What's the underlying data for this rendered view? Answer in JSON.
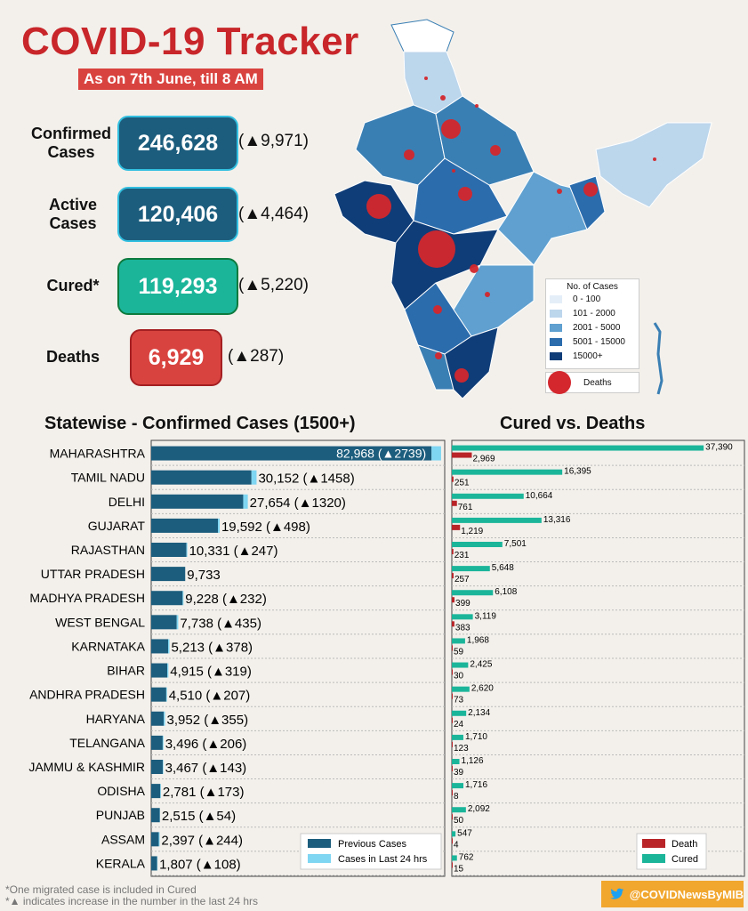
{
  "header": {
    "title": "COVID-19 Tracker",
    "date": "As on 7th June, till 8 AM"
  },
  "stats": {
    "confirmed": {
      "label_line1": "Confirmed",
      "label_line2": "Cases",
      "value": "246,628",
      "delta": "(▲9,971)"
    },
    "active": {
      "label_line1": "Active",
      "label_line2": "Cases",
      "value": "120,406",
      "delta": "(▲4,464)"
    },
    "cured": {
      "label": "Cured*",
      "value": "119,293",
      "delta": "(▲5,220)"
    },
    "deaths": {
      "label": "Deaths",
      "value": "6,929",
      "delta": "(▲287)"
    }
  },
  "map_legend": {
    "title": "No. of Cases",
    "items": [
      "0 - 100",
      "101 - 2000",
      "2001 - 5000",
      "5001 - 15000",
      "15000+"
    ],
    "deaths_label": "Deaths"
  },
  "colors": {
    "previous": "#1c5d7d",
    "last24": "#7fd6f2",
    "cured": "#1bb59a",
    "death": "#b82428",
    "title_red": "#c8262a"
  },
  "chart_data": [
    {
      "type": "bar",
      "orientation": "horizontal",
      "stacked": true,
      "title": "Statewise - Confirmed Cases (1500+)",
      "categories": [
        "MAHARASHTRA",
        "TAMIL NADU",
        "DELHI",
        "GUJARAT",
        "RAJASTHAN",
        "UTTAR PRADESH",
        "MADHYA PRADESH",
        "WEST BENGAL",
        "KARNATAKA",
        "BIHAR",
        "ANDHRA PRADESH",
        "HARYANA",
        "TELANGANA",
        "JAMMU & KASHMIR",
        "ODISHA",
        "PUNJAB",
        "ASSAM",
        "KERALA"
      ],
      "series": [
        {
          "name": "Previous Cases",
          "values": [
            80229,
            28694,
            26334,
            19094,
            10084,
            9733,
            8996,
            7303,
            4835,
            4596,
            4303,
            3597,
            3290,
            3324,
            2608,
            2461,
            2153,
            1699
          ]
        },
        {
          "name": "Cases in Last 24 hrs",
          "values": [
            2739,
            1458,
            1320,
            498,
            247,
            0,
            232,
            435,
            378,
            319,
            207,
            355,
            206,
            143,
            173,
            54,
            244,
            108
          ]
        }
      ],
      "labels": [
        "82,968 (▲2739)",
        "30,152 (▲1458)",
        "27,654 (▲1320)",
        "19,592 (▲498)",
        "10,331 (▲247)",
        "9,733",
        "9,228 (▲232)",
        "7,738 (▲435)",
        "5,213 (▲378)",
        "4,915 (▲319)",
        "4,510 (▲207)",
        "3,952 (▲355)",
        "3,496 (▲206)",
        "3,467 (▲143)",
        "2,781 (▲173)",
        "2,515 (▲54)",
        "2,397 (▲244)",
        "1,807 (▲108)"
      ],
      "xlim": [
        0,
        84000
      ],
      "legend": "bottom-right"
    },
    {
      "type": "bar",
      "orientation": "horizontal",
      "title": "Cured vs. Deaths",
      "series": [
        {
          "name": "Cured",
          "values": [
            37390,
            16395,
            10664,
            13316,
            7501,
            5648,
            6108,
            3119,
            1968,
            2425,
            2620,
            2134,
            1710,
            1126,
            1716,
            2092,
            547,
            762
          ],
          "labels": [
            "37,390",
            "16,395",
            "10,664",
            "13,316",
            "7,501",
            "5,648",
            "6,108",
            "3,119",
            "1,968",
            "2,425",
            "2,620",
            "2,134",
            "1,710",
            "1,126",
            "1,716",
            "2,092",
            "547",
            "762"
          ]
        },
        {
          "name": "Death",
          "values": [
            2969,
            251,
            761,
            1219,
            231,
            257,
            399,
            383,
            59,
            30,
            73,
            24,
            123,
            39,
            8,
            50,
            4,
            15
          ],
          "labels": [
            "2,969",
            "251",
            "761",
            "1,219",
            "231",
            "257",
            "399",
            "383",
            "59",
            "30",
            "73",
            "24",
            "123",
            "39",
            "8",
            "50",
            "4",
            "15"
          ]
        }
      ],
      "xlim": [
        0,
        37500
      ],
      "legend": "bottom-right"
    }
  ],
  "footnotes": {
    "line1": "*One migrated case is included in Cured",
    "line2": "*▲ indicates increase in the number in the last 24 hrs"
  },
  "twitter": {
    "handle": "@COVIDNewsByMIB",
    "icon": "twitter-bird-icon"
  }
}
